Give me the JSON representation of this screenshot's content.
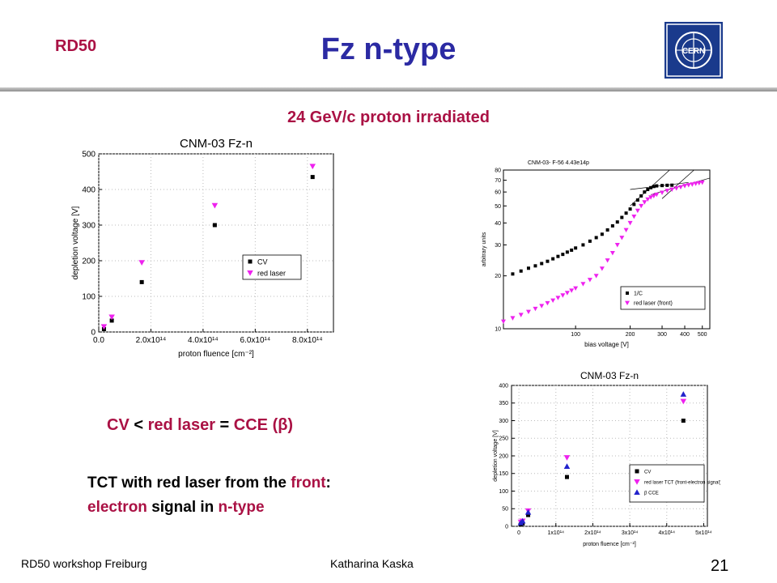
{
  "header": {
    "org": "RD50",
    "title": "Fz n-type",
    "logo_text": "CERN"
  },
  "subtitle": "24 GeV/c proton irradiated",
  "text": {
    "compare": {
      "a": "CV",
      "op1": " < ",
      "b": "red laser",
      "op2": " = ",
      "c": "CCE (β)"
    },
    "tct_line1_a": "TCT with red laser from the ",
    "tct_line1_b": "front",
    "tct_line1_c": ":",
    "tct_line2_a": "electron",
    "tct_line2_b": " signal in ",
    "tct_line2_c": "n-type"
  },
  "footer": {
    "left": "RD50 workshop Freiburg",
    "center": "Katharina Kaska",
    "page": "21"
  },
  "colors": {
    "accent": "#aa1144",
    "title": "#2b2aa3",
    "cv": "#000000",
    "laser": "#ee22ee",
    "cce": "#2222cc"
  },
  "chart_data": [
    {
      "type": "scatter",
      "title": "CNM-03 Fz-n",
      "xlabel": "proton fluence [cm⁻²]",
      "ylabel": "depletion voltage [V]",
      "xlim": [
        0,
        900000000000000.0
      ],
      "ylim": [
        0,
        500
      ],
      "x_ticks": [
        "0.0",
        "2.0x10¹⁴",
        "4.0x10¹⁴",
        "6.0x10¹⁴",
        "8.0x10¹⁴"
      ],
      "y_ticks": [
        "0",
        "100",
        "200",
        "300",
        "400",
        "500"
      ],
      "legend": "right",
      "series": [
        {
          "name": "CV",
          "marker": "square",
          "x": [
            20000000000000.0,
            50000000000000.0,
            165000000000000.0,
            445000000000000.0,
            820000000000000.0
          ],
          "y": [
            8,
            32,
            140,
            300,
            435
          ]
        },
        {
          "name": "red laser",
          "marker": "triangle-down",
          "x": [
            20000000000000.0,
            50000000000000.0,
            165000000000000.0,
            445000000000000.0,
            820000000000000.0
          ],
          "y": [
            15,
            42,
            195,
            355,
            465
          ]
        }
      ]
    },
    {
      "type": "scatter",
      "title": "CNM-03- F-56 4.43e14p",
      "xlabel": "bias voltage [V]",
      "ylabel": "arbitrary units",
      "xscale": "log",
      "yscale": "log",
      "xlim": [
        40,
        550
      ],
      "ylim": [
        10,
        80
      ],
      "x_ticks": [
        "100",
        "200",
        "300",
        "400",
        "500"
      ],
      "y_ticks": [
        "10",
        "20",
        "30",
        "40",
        "50",
        "60",
        "70",
        "80"
      ],
      "legend": "bottom-right",
      "series": [
        {
          "name": "1/C",
          "marker": "square",
          "x": [
            45,
            50,
            55,
            60,
            65,
            70,
            75,
            80,
            85,
            90,
            95,
            100,
            110,
            120,
            130,
            140,
            150,
            160,
            170,
            180,
            190,
            200,
            210,
            220,
            230,
            240,
            250,
            260,
            270,
            280,
            300,
            320,
            340
          ],
          "y": [
            20.5,
            21.3,
            22.1,
            22.8,
            23.5,
            24.2,
            25,
            25.8,
            26.5,
            27.3,
            28,
            28.8,
            30,
            31.5,
            33,
            34.5,
            36.5,
            38.5,
            40.5,
            43,
            45.5,
            48,
            51,
            54,
            57,
            60,
            62,
            63.5,
            64.5,
            65,
            65.3,
            65.5,
            65.6
          ]
        },
        {
          "name": "red laser (front)",
          "marker": "triangle-down",
          "x": [
            40,
            45,
            50,
            55,
            60,
            65,
            70,
            75,
            80,
            85,
            90,
            95,
            100,
            110,
            120,
            130,
            140,
            150,
            160,
            170,
            180,
            190,
            200,
            210,
            220,
            230,
            240,
            250,
            260,
            270,
            280,
            300,
            320,
            340,
            360,
            380,
            400,
            420,
            440,
            460,
            480,
            500
          ],
          "y": [
            11,
            11.5,
            12,
            12.5,
            13,
            13.5,
            14,
            14.5,
            15,
            15.5,
            16,
            16.5,
            17,
            18,
            19,
            20,
            22,
            24.5,
            27,
            30,
            33,
            36.5,
            40,
            43.5,
            47,
            50,
            52.5,
            54.5,
            56,
            57,
            58,
            59.5,
            61,
            62,
            63,
            64,
            65,
            65.7,
            66.3,
            67,
            67.5,
            68
          ]
        }
      ]
    },
    {
      "type": "scatter",
      "title": "CNM-03 Fz-n",
      "xlabel": "proton fluence [cm⁻²]",
      "ylabel": "depletion voltage [V]",
      "xlim": [
        -20000000000000.0,
        510000000000000.0
      ],
      "ylim": [
        0,
        400
      ],
      "x_ticks": [
        "0",
        "1x10¹⁴",
        "2x10¹⁴",
        "3x10¹⁴",
        "4x10¹⁴",
        "5x10¹⁴"
      ],
      "y_ticks": [
        "0",
        "50",
        "100",
        "150",
        "200",
        "250",
        "300",
        "350",
        "400"
      ],
      "legend": "right",
      "series": [
        {
          "name": "CV",
          "marker": "square",
          "x": [
            5000000000000.0,
            10000000000000.0,
            25000000000000.0,
            130000000000000.0,
            445000000000000.0
          ],
          "y": [
            5,
            8,
            32,
            140,
            300
          ]
        },
        {
          "name": "red laser TCT (front-electron signal)",
          "marker": "triangle-down",
          "x": [
            5000000000000.0,
            10000000000000.0,
            25000000000000.0,
            130000000000000.0,
            445000000000000.0
          ],
          "y": [
            12,
            15,
            44,
            195,
            355
          ]
        },
        {
          "name": "β CCE",
          "marker": "triangle-up",
          "x": [
            5000000000000.0,
            10000000000000.0,
            25000000000000.0,
            130000000000000.0,
            445000000000000.0
          ],
          "y": [
            10,
            15,
            40,
            170,
            375
          ]
        }
      ]
    }
  ]
}
